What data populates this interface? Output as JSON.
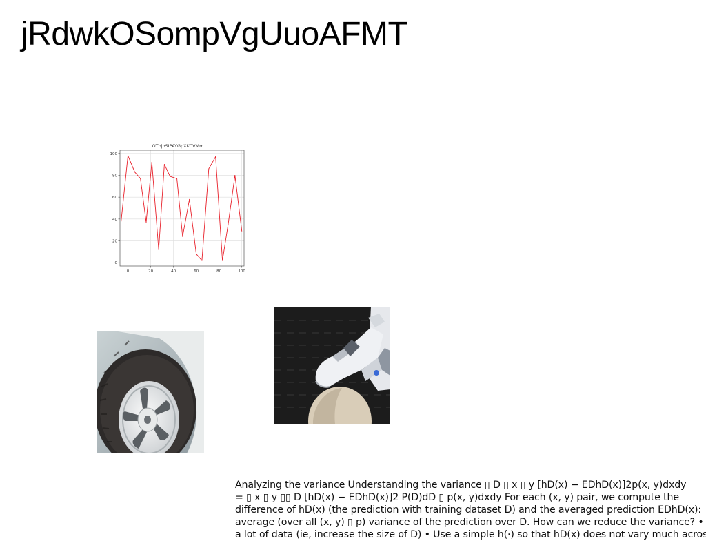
{
  "slide": {
    "title": "jRdwkOSompVgUuoAFMT"
  },
  "chart_data": {
    "type": "line",
    "title": "OTbjoSIPAYGpXKCVMm",
    "xlabel": "",
    "ylabel": "",
    "xlim": [
      -7,
      102
    ],
    "ylim": [
      -3,
      103
    ],
    "xticks": [
      0,
      20,
      40,
      60,
      80,
      100
    ],
    "yticks": [
      0,
      20,
      40,
      60,
      80,
      100
    ],
    "grid": true,
    "color": "#e8202a",
    "series": [
      {
        "x": [
          -6,
          0,
          6,
          11,
          16,
          21,
          27,
          32,
          37,
          43,
          48,
          54,
          60,
          65,
          71,
          77,
          83,
          88,
          94,
          100
        ],
        "values": [
          38,
          98,
          83,
          77,
          37,
          92,
          12,
          90,
          79,
          77,
          24,
          58,
          8,
          2,
          86,
          97,
          2,
          35,
          80,
          29
        ]
      }
    ]
  },
  "images": {
    "tire": {
      "icon": "car-tire-photo"
    },
    "robot": {
      "icon": "robot-hand-photo"
    }
  },
  "body": {
    "lines": [
      "Analyzing the variance Understanding the variance ▯ D ▯ x ▯ y [hD(x) − EDhD(x)]2p(x, y)dxdy",
      "= ▯ x ▯ y ▯▯ D [hD(x) − EDhD(x)]2 P(D)dD ▯ p(x, y)dxdy For each (x, y) pair, we compute the",
      "difference of hD(x) (the prediction with training dataset D) and the averaged prediction EDhD(x):",
      "average (over all (x, y) ▯ p) variance of the prediction over D. How can we reduce the variance? •",
      "a lot of data (ie, increase the size of D) • Use a simple h(·) so that hD(x) does not vary much across"
    ]
  }
}
